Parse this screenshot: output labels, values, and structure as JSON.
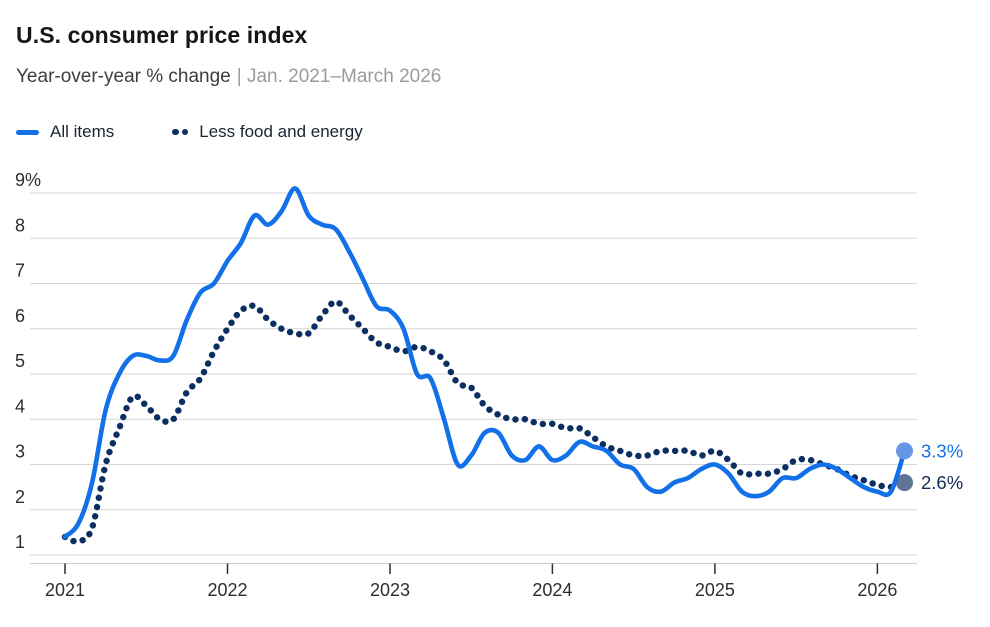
{
  "header": {
    "title": "U.S. consumer price index",
    "subtitle": "Year-over-year % change",
    "range": "| Jan. 2021–March 2026"
  },
  "legend": {
    "items": [
      {
        "label": "All items"
      },
      {
        "label": "Less food and energy"
      }
    ]
  },
  "chart_data": {
    "type": "line",
    "title": "U.S. consumer price index",
    "subtitle": "Year-over-year % change",
    "period": "Jan. 2021–March 2026",
    "x_unit": "month",
    "x_tick_labels": [
      "2021",
      "2022",
      "2023",
      "2024",
      "2025",
      "2026"
    ],
    "y_ticks": [
      1,
      2,
      3,
      4,
      5,
      6,
      7,
      8,
      9
    ],
    "y_top_tick_label": "9%",
    "ylim": [
      1,
      9.2
    ],
    "grid": "horizontal",
    "legend_position": "top-left",
    "colors": {
      "grid": "#d6d6d6",
      "axis_line": "#cdcdcd",
      "axis_text": "#2e2e2e"
    },
    "series": [
      {
        "name": "All items",
        "style": "solid",
        "color": "#1270e8",
        "marker_color": "#6597e3",
        "end_label": "3.3%",
        "end_label_color": "#1270e8",
        "values": [
          1.4,
          1.7,
          2.6,
          4.2,
          5.0,
          5.4,
          5.4,
          5.3,
          5.4,
          6.2,
          6.8,
          7.0,
          7.5,
          7.9,
          8.5,
          8.3,
          8.6,
          9.1,
          8.5,
          8.3,
          8.2,
          7.7,
          7.1,
          6.5,
          6.4,
          6.0,
          5.0,
          4.9,
          4.0,
          3.0,
          3.2,
          3.7,
          3.7,
          3.2,
          3.1,
          3.4,
          3.1,
          3.2,
          3.5,
          3.4,
          3.3,
          3.0,
          2.9,
          2.5,
          2.4,
          2.6,
          2.7,
          2.9,
          3.0,
          2.8,
          2.4,
          2.3,
          2.4,
          2.7,
          2.7,
          2.9,
          3.0,
          2.9,
          2.7,
          2.5,
          2.4,
          2.4,
          3.3
        ]
      },
      {
        "name": "Less food and energy",
        "style": "dotted",
        "color": "#0c2f62",
        "marker_color": "#5f7394",
        "end_label": "2.6%",
        "end_label_color": "#0f2c55",
        "values": [
          1.4,
          1.3,
          1.6,
          3.0,
          3.8,
          4.5,
          4.3,
          4.0,
          4.0,
          4.6,
          4.9,
          5.5,
          6.0,
          6.4,
          6.5,
          6.2,
          6.0,
          5.9,
          5.9,
          6.3,
          6.6,
          6.3,
          6.0,
          5.7,
          5.6,
          5.5,
          5.6,
          5.5,
          5.3,
          4.8,
          4.7,
          4.3,
          4.1,
          4.0,
          4.0,
          3.9,
          3.9,
          3.8,
          3.8,
          3.6,
          3.4,
          3.3,
          3.2,
          3.2,
          3.3,
          3.3,
          3.3,
          3.2,
          3.3,
          3.1,
          2.8,
          2.8,
          2.8,
          2.9,
          3.1,
          3.1,
          3.0,
          2.9,
          2.75,
          2.65,
          2.55,
          2.5,
          2.6
        ]
      }
    ]
  }
}
